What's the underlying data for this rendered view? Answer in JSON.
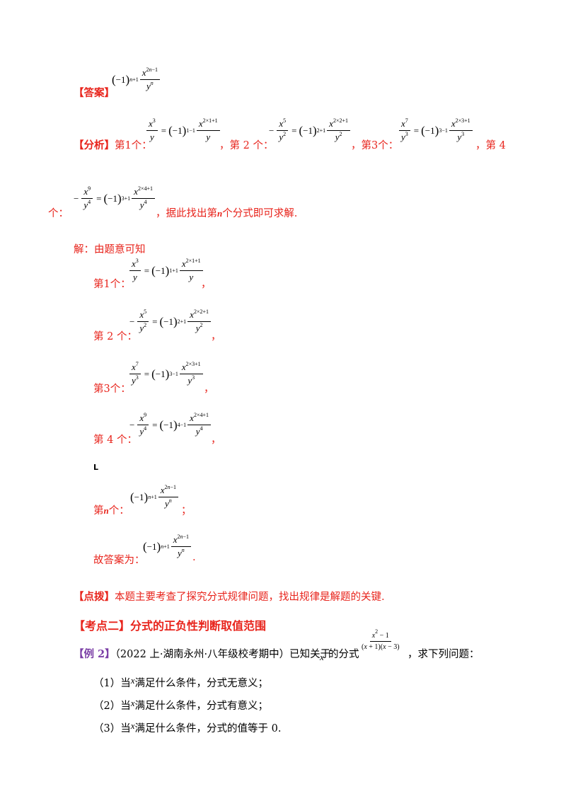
{
  "answer": {
    "label": "【答案】"
  },
  "analysis": {
    "label": "【分析】",
    "items": [
      "第1个：",
      "，第 2 个：",
      "，第3个：",
      "，第 4",
      "个："
    ],
    "tail": "，据此找出第",
    "tail2": "个分式即可求解."
  },
  "solution": {
    "intro": "解：由题意可知",
    "lines": [
      "第1个：",
      "第 2 个：",
      "第3个：",
      "第 4 个："
    ],
    "comma": "，",
    "ellipsis": "L",
    "nth": "第",
    "nth2": "个：",
    "semicolon": "；",
    "final_label": "故答案为：",
    "final_period": "."
  },
  "tip": {
    "label": "【点拨】",
    "text": "本题主要考查了探究分式规律问题，找出规律是解题的关键."
  },
  "section": {
    "title": "【考点二】分式的正负性判断取值范围"
  },
  "example": {
    "label": "【例 2】",
    "source": "（2022 上·湖南永州·八年级校考期中）已知关于",
    "mid": "的分式",
    "end": "，求下列问题：",
    "questions": [
      {
        "num": "（1）当",
        "tail": "满足什么条件，分式无意义；"
      },
      {
        "num": "（2）当",
        "tail": "满足什么条件，分式有意义；"
      },
      {
        "num": "（3）当",
        "tail": "满足什么条件，分式的值等于 0."
      }
    ]
  }
}
